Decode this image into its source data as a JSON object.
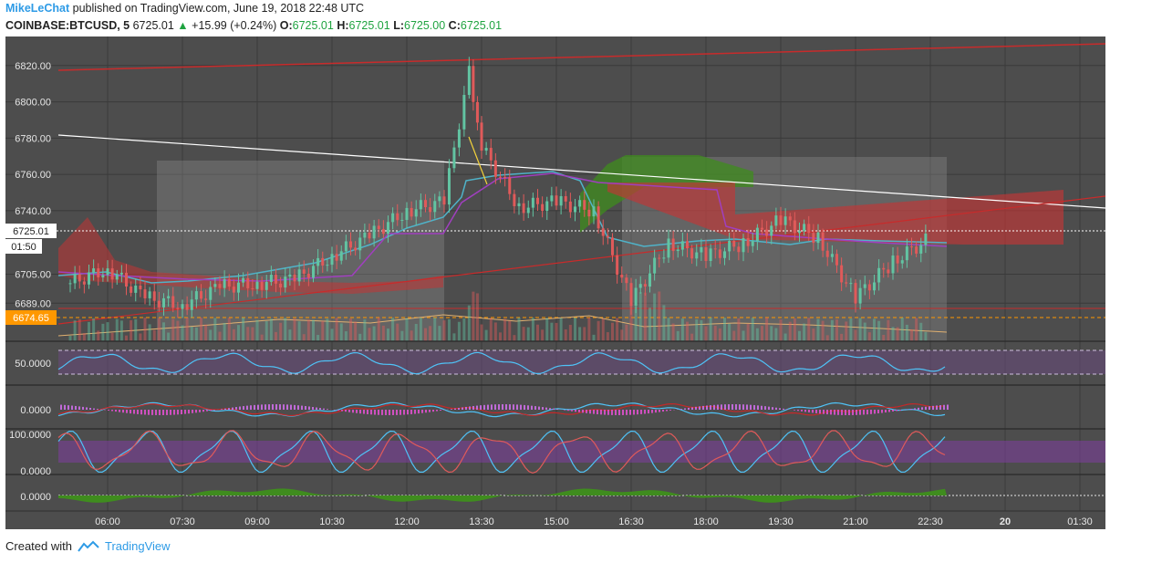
{
  "header": {
    "author": "MikeLeChat",
    "published_text": "published on TradingView.com, June 19, 2018 22:48 UTC"
  },
  "quote": {
    "symbol": "COINBASE:BTCUSD, 5",
    "last": "6725.01",
    "change_arrow": "▲",
    "change": "+15.99 (+0.24%)",
    "o_label": "O:",
    "o": "6725.01",
    "h_label": "H:",
    "h": "6725.01",
    "l_label": "L:",
    "l": "6725.00",
    "c_label": "C:",
    "c": "6725.01"
  },
  "footer": {
    "created_with": "Created with",
    "brand": "TradingView"
  },
  "colors": {
    "background": "#4d4d4d",
    "up": "#62c4a2",
    "down": "#e05a5a",
    "price_tag": "#ff9800",
    "cloud_red": "#c23535",
    "cloud_green": "#3f8c1e"
  },
  "chart_data": {
    "type": "line",
    "price_ticks": [
      "6820.00",
      "6800.00",
      "6780.00",
      "6760.00",
      "6740.00",
      "6705.00",
      "6689.00"
    ],
    "time_ticks": [
      "06:00",
      "07:30",
      "09:00",
      "10:30",
      "12:00",
      "13:30",
      "15:00",
      "16:30",
      "18:00",
      "19:30",
      "21:00",
      "22:30",
      "20",
      "01:30"
    ],
    "last_price_tag": "6725.01",
    "countdown_tag": "01:50",
    "support_tag": "6674.65",
    "ylim": [
      6668,
      6836
    ],
    "close_series": [
      {
        "t": "05:15",
        "v": 6700
      },
      {
        "t": "06:00",
        "v": 6708
      },
      {
        "t": "06:45",
        "v": 6692
      },
      {
        "t": "07:30",
        "v": 6688
      },
      {
        "t": "08:15",
        "v": 6698
      },
      {
        "t": "09:00",
        "v": 6700
      },
      {
        "t": "09:45",
        "v": 6702
      },
      {
        "t": "10:30",
        "v": 6715
      },
      {
        "t": "11:15",
        "v": 6726
      },
      {
        "t": "12:00",
        "v": 6740
      },
      {
        "t": "12:45",
        "v": 6745
      },
      {
        "t": "13:15",
        "v": 6818
      },
      {
        "t": "13:30",
        "v": 6775
      },
      {
        "t": "14:15",
        "v": 6742
      },
      {
        "t": "15:00",
        "v": 6745
      },
      {
        "t": "15:45",
        "v": 6740
      },
      {
        "t": "16:30",
        "v": 6690
      },
      {
        "t": "17:15",
        "v": 6722
      },
      {
        "t": "18:00",
        "v": 6715
      },
      {
        "t": "18:45",
        "v": 6722
      },
      {
        "t": "19:30",
        "v": 6735
      },
      {
        "t": "20:15",
        "v": 6725
      },
      {
        "t": "21:00",
        "v": 6692
      },
      {
        "t": "21:45",
        "v": 6712
      },
      {
        "t": "22:30",
        "v": 6725
      }
    ],
    "indicators": [
      {
        "axis_label": "50.0000"
      },
      {
        "axis_label": "0.0000"
      },
      {
        "axis_label_top": "100.0000",
        "axis_label_bottom": "0.0000"
      },
      {
        "axis_label": "0.0000"
      }
    ],
    "grid": true
  }
}
